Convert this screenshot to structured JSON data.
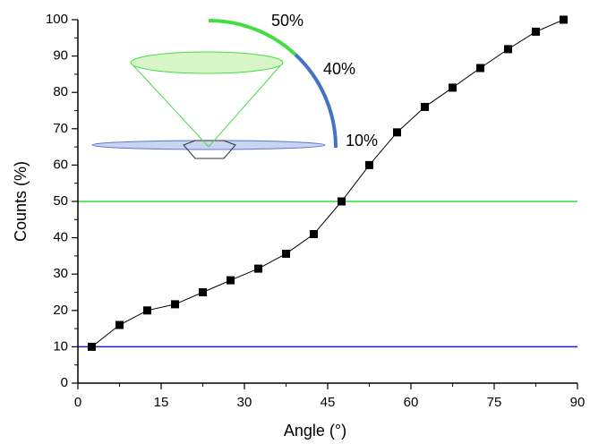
{
  "chart_data": {
    "type": "line",
    "xlabel": "Angle (°)",
    "ylabel": "Counts (%)",
    "x": [
      2.5,
      7.5,
      12.5,
      17.5,
      22.5,
      27.5,
      32.5,
      37.5,
      42.5,
      47.5,
      52.5,
      57.5,
      62.5,
      67.5,
      72.5,
      77.5,
      82.5,
      87.5
    ],
    "series": [
      {
        "color": "#000000",
        "values": [
          10,
          16,
          20,
          21.7,
          25,
          28.3,
          31.5,
          35.6,
          41,
          50,
          60,
          69,
          76,
          81.3,
          86.7,
          91.9,
          96.7,
          100
        ]
      }
    ],
    "xlim": [
      0,
      90
    ],
    "xticks": [
      0,
      15,
      30,
      45,
      60,
      75,
      90
    ],
    "ylim": [
      0,
      100
    ],
    "yticks": [
      0,
      10,
      20,
      30,
      40,
      50,
      60,
      70,
      80,
      90,
      100
    ],
    "hlines": [
      {
        "value": 50,
        "color": "#33dd33"
      },
      {
        "value": 10,
        "color": "#1a1acc"
      }
    ],
    "annotations": [
      "50%",
      "40%",
      "10%"
    ]
  }
}
